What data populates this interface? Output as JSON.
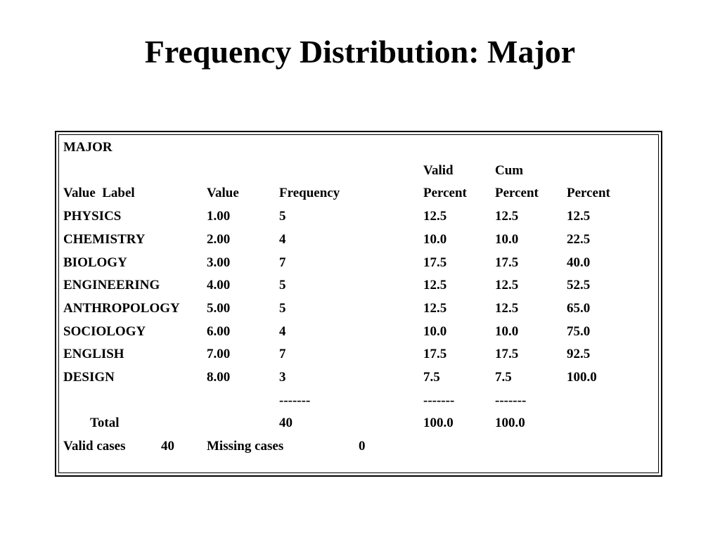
{
  "title": "Frequency Distribution: Major",
  "table": {
    "variable": "MAJOR",
    "header_top": {
      "valid": "Valid",
      "cum": "Cum"
    },
    "header": {
      "value_label": "Value  Label",
      "value": "Value",
      "frequency": "Frequency",
      "percent": "Percent",
      "valid_percent": "Percent",
      "cum_percent": "Percent"
    },
    "rows": [
      {
        "label": "PHYSICS",
        "value": "1.00",
        "frequency": "5",
        "percent": "12.5",
        "valid_percent": "12.5",
        "cum_percent": "12.5"
      },
      {
        "label": "CHEMISTRY",
        "value": "2.00",
        "frequency": "4",
        "percent": "10.0",
        "valid_percent": "10.0",
        "cum_percent": "22.5"
      },
      {
        "label": "BIOLOGY",
        "value": "3.00",
        "frequency": "7",
        "percent": "17.5",
        "valid_percent": "17.5",
        "cum_percent": "40.0"
      },
      {
        "label": "ENGINEERING",
        "value": "4.00",
        "frequency": "5",
        "percent": "12.5",
        "valid_percent": "12.5",
        "cum_percent": "52.5"
      },
      {
        "label": "ANTHROPOLOGY",
        "value": "5.00",
        "frequency": "5",
        "percent": "12.5",
        "valid_percent": "12.5",
        "cum_percent": "65.0"
      },
      {
        "label": "SOCIOLOGY",
        "value": "6.00",
        "frequency": "4",
        "percent": "10.0",
        "valid_percent": "10.0",
        "cum_percent": "75.0"
      },
      {
        "label": "ENGLISH",
        "value": "7.00",
        "frequency": "7",
        "percent": "17.5",
        "valid_percent": "17.5",
        "cum_percent": "92.5"
      },
      {
        "label": "DESIGN",
        "value": "8.00",
        "frequency": "3",
        "percent": "7.5",
        "valid_percent": "7.5",
        "cum_percent": "100.0"
      }
    ],
    "separator": {
      "frequency": "-------",
      "percent": "-------",
      "valid_percent": "-------"
    },
    "total": {
      "label": "Total",
      "frequency": "40",
      "percent": "100.0",
      "valid_percent": "100.0"
    },
    "footer": {
      "valid_cases_label": "Valid cases",
      "valid_cases": "40",
      "missing_cases_label": "Missing cases",
      "missing_cases": "0"
    }
  }
}
